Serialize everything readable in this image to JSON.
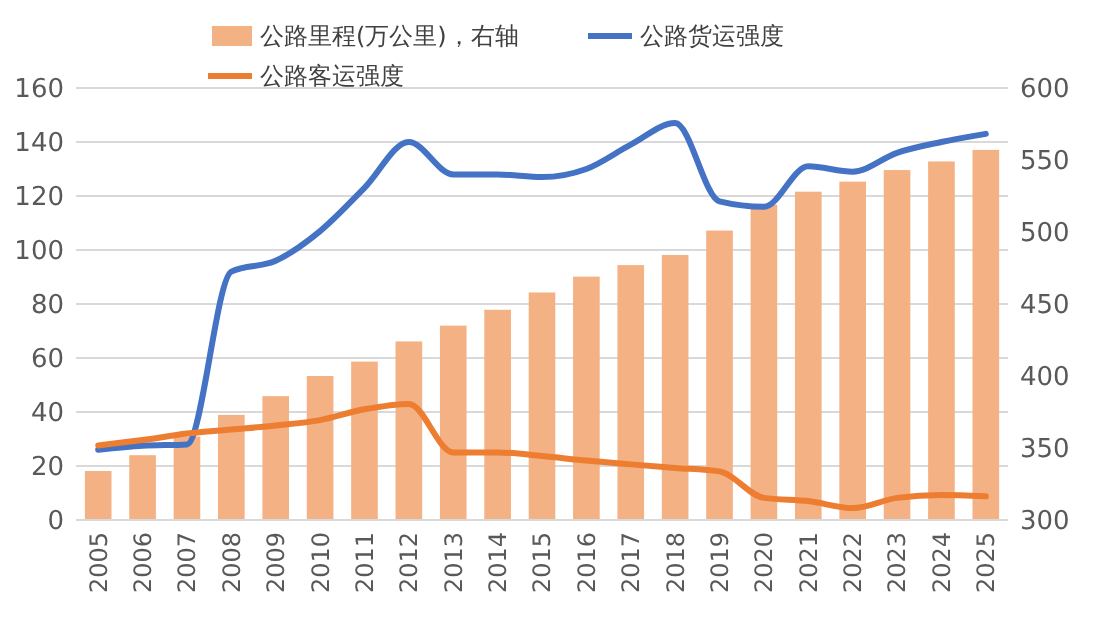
{
  "chart_data": {
    "type": "bar",
    "categories": [
      "2005",
      "2006",
      "2007",
      "2008",
      "2009",
      "2010",
      "2011",
      "2012",
      "2013",
      "2014",
      "2015",
      "2016",
      "2017",
      "2018",
      "2019",
      "2020",
      "2021",
      "2022",
      "2023",
      "2024",
      "2025"
    ],
    "series": [
      {
        "name": "公路里程(万公里)，右轴",
        "axis": "y2",
        "color": "#f4b183",
        "values": [
          334,
          345,
          358,
          373,
          386,
          400,
          410,
          424,
          435,
          446,
          458,
          469,
          477,
          484,
          501,
          519,
          528,
          535,
          543,
          549,
          557
        ]
      },
      {
        "name": "公路货运强度",
        "type": "line",
        "color": "#4472c4",
        "values": [
          26,
          27.5,
          28,
          92,
          96,
          107,
          123,
          140,
          128,
          128,
          127,
          130,
          139,
          147,
          118,
          116,
          131,
          129,
          136,
          140,
          143
        ]
      },
      {
        "name": "公路客运强度",
        "type": "line",
        "color": "#ed7d31",
        "values": [
          27.6,
          29.6,
          32,
          33.5,
          35,
          37,
          41,
          43,
          25,
          25,
          23.7,
          22,
          20.6,
          19.3,
          18,
          8.2,
          7,
          4.4,
          8.2,
          9.3,
          8.8
        ]
      }
    ],
    "ylim": [
      0,
      160
    ],
    "yticks": [
      0,
      20,
      40,
      60,
      80,
      100,
      120,
      140,
      160
    ],
    "y2lim": [
      300,
      600
    ],
    "y2ticks": [
      300,
      350,
      400,
      450,
      500,
      550,
      600
    ],
    "grid": "y",
    "legend": "top"
  }
}
